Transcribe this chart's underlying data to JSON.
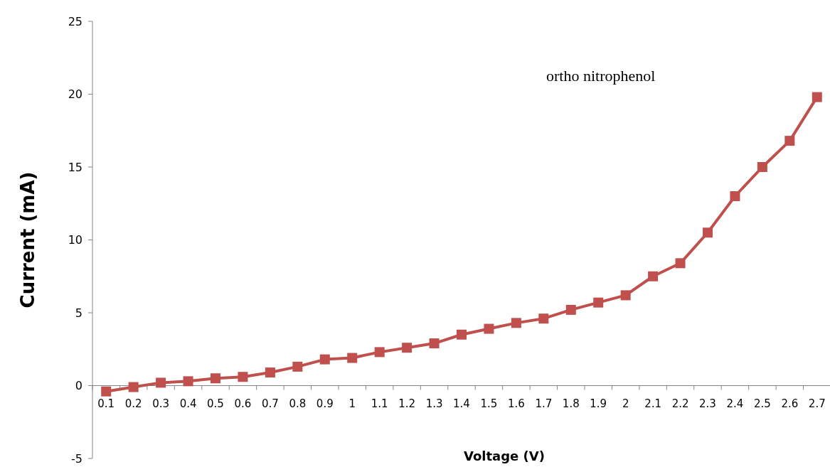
{
  "chart_data": {
    "type": "line",
    "xlabel": "Voltage (V)",
    "ylabel": "Current (mA)",
    "categories": [
      "0.1",
      "0.2",
      "0.3",
      "0.4",
      "0.5",
      "0.6",
      "0.7",
      "0.8",
      "0.9",
      "1",
      "1.1",
      "1.2",
      "1.3",
      "1.4",
      "1.5",
      "1.6",
      "1.7",
      "1.8",
      "1.9",
      "2",
      "2.1",
      "2.2",
      "2.3",
      "2.4",
      "2.5",
      "2.6",
      "2.7"
    ],
    "series": [
      {
        "color": "#c0504d",
        "values": [
          -0.4,
          -0.1,
          0.2,
          0.3,
          0.5,
          0.6,
          0.9,
          1.3,
          1.8,
          1.9,
          2.3,
          2.6,
          2.9,
          3.5,
          3.9,
          4.3,
          4.6,
          5.2,
          5.7,
          6.2,
          7.5,
          8.4,
          10.5,
          13.0,
          15.0,
          16.8,
          19.8
        ]
      }
    ],
    "ylim": [
      -5,
      25
    ],
    "yticks": [
      -5,
      0,
      5,
      10,
      15,
      20,
      25
    ],
    "marker": "square",
    "line_style": "solid",
    "annotations": [
      "ortho nitrophenol"
    ]
  }
}
